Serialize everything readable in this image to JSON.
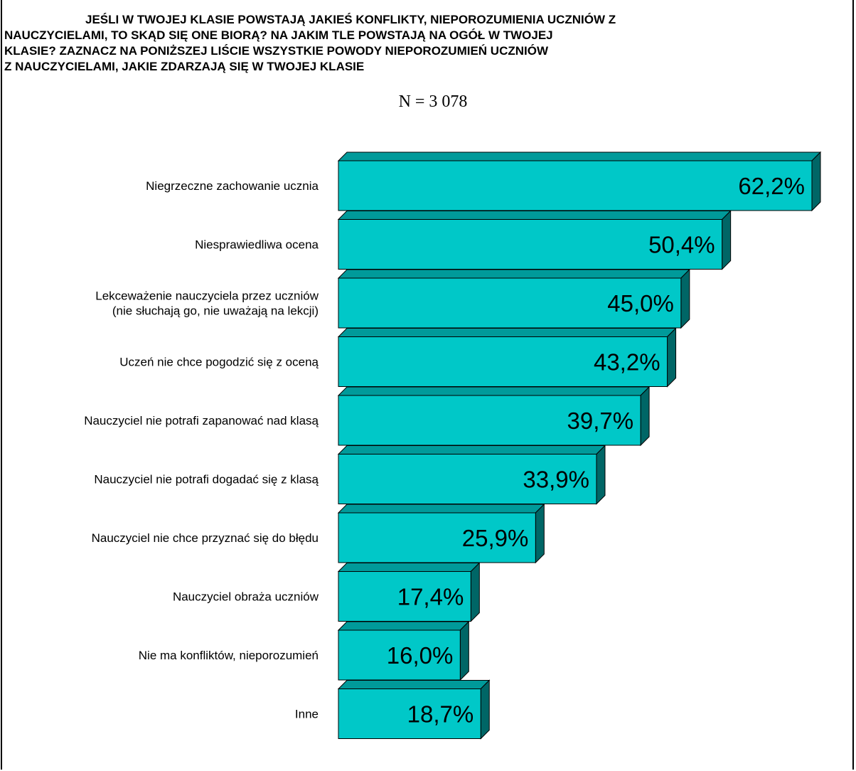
{
  "title_lines": [
    "JEŚLI W TWOJEJ KLASIE POWSTAJĄ JAKIEŚ KONFLIKTY, NIEPOROZUMIENIA UCZNIÓW Z",
    "NAUCZYCIELAMI, TO SKĄD SIĘ ONE BIORĄ? NA JAKIM TLE POWSTAJĄ NA OGÓŁ W TWOJEJ",
    "KLASIE? ZAZNACZ NA PONIŻSZEJ LIŚCIE WSZYSTKIE POWODY NIEPOROZUMIEŃ UCZNIÓW",
    "Z  NAUCZYCIELAMI, JAKIE ZDARZAJĄ SIĘ W TWOJEJ KLASIE"
  ],
  "subtitle": "N = 3 078",
  "colors": {
    "bar_front": "#00c8c8",
    "bar_top": "#009a9a",
    "bar_side": "#006666",
    "outline": "#000000"
  },
  "chart_data": {
    "type": "bar",
    "orientation": "horizontal",
    "style": "3d",
    "title": "JEŚLI W TWOJEJ KLASIE POWSTAJĄ JAKIEŚ KONFLIKTY, NIEPOROZUMIENIA UCZNIÓW Z NAUCZYCIELAMI, TO SKĄD SIĘ ONE BIORĄ? NA JAKIM TLE POWSTAJĄ NA OGÓŁ W TWOJEJ KLASIE? ZAZNACZ NA PONIŻSZEJ LIŚCIE WSZYSTKIE POWODY NIEPOROZUMIEŃ UCZNIÓW Z  NAUCZYCIELAMI, JAKIE ZDARZAJĄ SIĘ W TWOJEJ KLASIE",
    "subtitle": "N = 3 078",
    "categories": [
      [
        "Niegrzeczne zachowanie ucznia"
      ],
      [
        "Niesprawiedliwa ocena"
      ],
      [
        "Lekceważenie nauczyciela przez uczniów",
        "(nie słuchają go, nie uważają na lekcji)"
      ],
      [
        "Uczeń nie chce pogodzić się z oceną"
      ],
      [
        "Nauczyciel nie potrafi zapanować nad klasą"
      ],
      [
        "Nauczyciel nie potrafi dogadać się z klasą"
      ],
      [
        "Nauczyciel nie chce przyznać się do błędu"
      ],
      [
        "Nauczyciel obraża uczniów"
      ],
      [
        "Nie ma konfliktów, nieporozumień"
      ],
      [
        "Inne"
      ]
    ],
    "values": [
      62.2,
      50.4,
      45.0,
      43.2,
      39.7,
      33.9,
      25.9,
      17.4,
      16.0,
      18.7
    ],
    "value_labels": [
      "62,2%",
      "50,4%",
      "45,0%",
      "43,2%",
      "39,7%",
      "33,9%",
      "25,9%",
      "17,4%",
      "16,0%",
      "18,7%"
    ],
    "xlim": [
      0,
      62.2
    ],
    "grid": false,
    "legend": "none"
  }
}
